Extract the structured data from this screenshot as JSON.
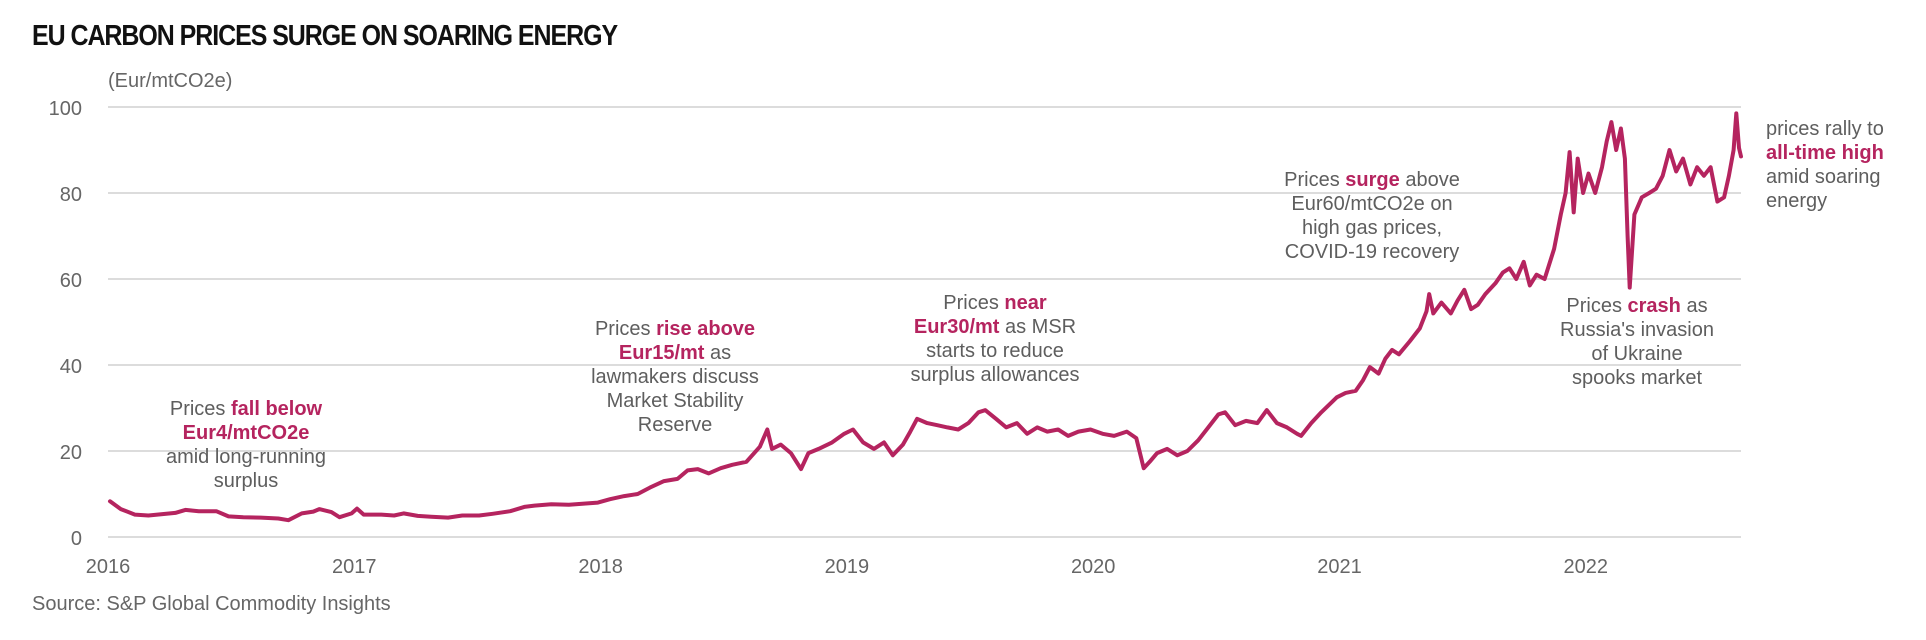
{
  "chart_data": {
    "type": "line",
    "title": "EU CARBON PRICES SURGE ON SOARING ENERGY",
    "ylabel": "(Eur/mtCO2e)",
    "xlabel": "",
    "source": "Source: S&P Global Commodity Insights",
    "ylim": [
      0,
      100
    ],
    "yticks": [
      "0",
      "20",
      "40",
      "60",
      "80",
      "100"
    ],
    "xticks": [
      "2016",
      "2017",
      "2018",
      "2019",
      "2020",
      "2021",
      "2022"
    ],
    "grid": true,
    "line_color": "#b5245f",
    "emphasis_color": "#b5245f",
    "series": [
      {
        "points": [
          [
            "2016-01-04",
            8.3
          ],
          [
            "2016-01-20",
            6.5
          ],
          [
            "2016-02-10",
            5.2
          ],
          [
            "2016-03-01",
            5.0
          ],
          [
            "2016-03-20",
            5.3
          ],
          [
            "2016-04-10",
            5.6
          ],
          [
            "2016-04-25",
            6.3
          ],
          [
            "2016-05-15",
            6.0
          ],
          [
            "2016-06-10",
            6.0
          ],
          [
            "2016-06-28",
            4.8
          ],
          [
            "2016-07-20",
            4.6
          ],
          [
            "2016-08-15",
            4.5
          ],
          [
            "2016-09-10",
            4.3
          ],
          [
            "2016-09-25",
            3.9
          ],
          [
            "2016-10-15",
            5.5
          ],
          [
            "2016-11-01",
            5.9
          ],
          [
            "2016-11-10",
            6.5
          ],
          [
            "2016-11-28",
            5.8
          ],
          [
            "2016-12-10",
            4.6
          ],
          [
            "2016-12-28",
            5.5
          ],
          [
            "2017-01-05",
            6.6
          ],
          [
            "2017-01-15",
            5.2
          ],
          [
            "2017-02-10",
            5.2
          ],
          [
            "2017-03-01",
            5.0
          ],
          [
            "2017-03-15",
            5.5
          ],
          [
            "2017-04-05",
            4.9
          ],
          [
            "2017-04-25",
            4.7
          ],
          [
            "2017-05-20",
            4.5
          ],
          [
            "2017-06-10",
            5.0
          ],
          [
            "2017-07-05",
            5.0
          ],
          [
            "2017-07-25",
            5.4
          ],
          [
            "2017-08-20",
            6.0
          ],
          [
            "2017-09-10",
            7.0
          ],
          [
            "2017-09-25",
            7.3
          ],
          [
            "2017-10-20",
            7.6
          ],
          [
            "2017-11-15",
            7.5
          ],
          [
            "2017-12-10",
            7.8
          ],
          [
            "2017-12-28",
            8.0
          ],
          [
            "2018-01-15",
            8.8
          ],
          [
            "2018-02-05",
            9.5
          ],
          [
            "2018-02-25",
            10.0
          ],
          [
            "2018-03-15",
            11.5
          ],
          [
            "2018-04-05",
            13.0
          ],
          [
            "2018-04-25",
            13.5
          ],
          [
            "2018-05-10",
            15.5
          ],
          [
            "2018-05-25",
            15.8
          ],
          [
            "2018-06-10",
            14.8
          ],
          [
            "2018-06-28",
            16.0
          ],
          [
            "2018-07-15",
            16.8
          ],
          [
            "2018-08-05",
            17.5
          ],
          [
            "2018-08-25",
            21.0
          ],
          [
            "2018-09-05",
            25.0
          ],
          [
            "2018-09-12",
            20.5
          ],
          [
            "2018-09-25",
            21.5
          ],
          [
            "2018-10-10",
            19.5
          ],
          [
            "2018-10-25",
            15.8
          ],
          [
            "2018-11-05",
            19.5
          ],
          [
            "2018-11-20",
            20.5
          ],
          [
            "2018-12-10",
            22.0
          ],
          [
            "2018-12-28",
            24.0
          ],
          [
            "2019-01-10",
            25.0
          ],
          [
            "2019-01-25",
            22.0
          ],
          [
            "2019-02-10",
            20.5
          ],
          [
            "2019-02-25",
            22.0
          ],
          [
            "2019-03-10",
            19.0
          ],
          [
            "2019-03-25",
            21.5
          ],
          [
            "2019-04-05",
            24.5
          ],
          [
            "2019-04-15",
            27.5
          ],
          [
            "2019-04-30",
            26.5
          ],
          [
            "2019-05-15",
            26.0
          ],
          [
            "2019-05-30",
            25.5
          ],
          [
            "2019-06-15",
            25.0
          ],
          [
            "2019-06-30",
            26.5
          ],
          [
            "2019-07-15",
            29.0
          ],
          [
            "2019-07-25",
            29.5
          ],
          [
            "2019-08-10",
            27.5
          ],
          [
            "2019-08-25",
            25.5
          ],
          [
            "2019-09-10",
            26.5
          ],
          [
            "2019-09-25",
            24.0
          ],
          [
            "2019-10-10",
            25.5
          ],
          [
            "2019-10-25",
            24.5
          ],
          [
            "2019-11-10",
            25.0
          ],
          [
            "2019-11-25",
            23.5
          ],
          [
            "2019-12-10",
            24.5
          ],
          [
            "2019-12-28",
            25.0
          ],
          [
            "2020-01-15",
            24.0
          ],
          [
            "2020-02-01",
            23.5
          ],
          [
            "2020-02-20",
            24.5
          ],
          [
            "2020-03-05",
            23.0
          ],
          [
            "2020-03-16",
            16.0
          ],
          [
            "2020-03-25",
            17.5
          ],
          [
            "2020-04-05",
            19.5
          ],
          [
            "2020-04-20",
            20.5
          ],
          [
            "2020-05-05",
            19.0
          ],
          [
            "2020-05-20",
            20.0
          ],
          [
            "2020-06-05",
            22.5
          ],
          [
            "2020-06-20",
            25.5
          ],
          [
            "2020-07-05",
            28.5
          ],
          [
            "2020-07-15",
            29.0
          ],
          [
            "2020-07-30",
            26.0
          ],
          [
            "2020-08-15",
            27.0
          ],
          [
            "2020-09-01",
            26.5
          ],
          [
            "2020-09-15",
            29.5
          ],
          [
            "2020-09-30",
            26.5
          ],
          [
            "2020-10-15",
            25.5
          ],
          [
            "2020-10-30",
            24.0
          ],
          [
            "2020-11-05",
            23.5
          ],
          [
            "2020-11-20",
            26.5
          ],
          [
            "2020-12-05",
            29.0
          ],
          [
            "2020-12-28",
            32.5
          ],
          [
            "2021-01-10",
            33.5
          ],
          [
            "2021-01-25",
            34.0
          ],
          [
            "2021-02-05",
            36.5
          ],
          [
            "2021-02-15",
            39.5
          ],
          [
            "2021-02-28",
            38.0
          ],
          [
            "2021-03-10",
            41.5
          ],
          [
            "2021-03-20",
            43.5
          ],
          [
            "2021-03-30",
            42.5
          ],
          [
            "2021-04-15",
            45.5
          ],
          [
            "2021-04-30",
            48.5
          ],
          [
            "2021-05-10",
            52.5
          ],
          [
            "2021-05-14",
            56.5
          ],
          [
            "2021-05-20",
            52.0
          ],
          [
            "2021-06-01",
            54.5
          ],
          [
            "2021-06-15",
            52.0
          ],
          [
            "2021-06-25",
            55.0
          ],
          [
            "2021-07-05",
            57.5
          ],
          [
            "2021-07-15",
            53.0
          ],
          [
            "2021-07-25",
            54.0
          ],
          [
            "2021-08-05",
            56.5
          ],
          [
            "2021-08-20",
            59.0
          ],
          [
            "2021-08-31",
            61.5
          ],
          [
            "2021-09-10",
            62.5
          ],
          [
            "2021-09-20",
            60.0
          ],
          [
            "2021-10-01",
            64.0
          ],
          [
            "2021-10-10",
            58.5
          ],
          [
            "2021-10-20",
            61.0
          ],
          [
            "2021-11-01",
            60.0
          ],
          [
            "2021-11-15",
            67.0
          ],
          [
            "2021-11-25",
            75.0
          ],
          [
            "2021-12-02",
            80.0
          ],
          [
            "2021-12-08",
            89.5
          ],
          [
            "2021-12-14",
            75.5
          ],
          [
            "2021-12-20",
            88.0
          ],
          [
            "2021-12-28",
            80.0
          ],
          [
            "2022-01-05",
            84.5
          ],
          [
            "2022-01-15",
            80.0
          ],
          [
            "2022-01-25",
            86.0
          ],
          [
            "2022-02-01",
            92.0
          ],
          [
            "2022-02-08",
            96.5
          ],
          [
            "2022-02-15",
            90.0
          ],
          [
            "2022-02-22",
            95.0
          ],
          [
            "2022-02-28",
            88.0
          ],
          [
            "2022-03-04",
            70.0
          ],
          [
            "2022-03-07",
            58.0
          ],
          [
            "2022-03-14",
            75.0
          ],
          [
            "2022-03-25",
            79.0
          ],
          [
            "2022-04-05",
            80.0
          ],
          [
            "2022-04-15",
            81.0
          ],
          [
            "2022-04-25",
            84.0
          ],
          [
            "2022-05-05",
            90.0
          ],
          [
            "2022-05-15",
            85.0
          ],
          [
            "2022-05-25",
            88.0
          ],
          [
            "2022-06-05",
            82.0
          ],
          [
            "2022-06-15",
            86.0
          ],
          [
            "2022-06-25",
            84.0
          ],
          [
            "2022-07-05",
            86.0
          ],
          [
            "2022-07-15",
            78.0
          ],
          [
            "2022-07-25",
            79.0
          ],
          [
            "2022-08-01",
            84.0
          ],
          [
            "2022-08-08",
            90.0
          ],
          [
            "2022-08-12",
            98.5
          ],
          [
            "2022-08-16",
            90.5
          ],
          [
            "2022-08-19",
            88.5
          ]
        ]
      }
    ],
    "annotations": [
      {
        "lines": [
          [
            {
              "text": "Prices ",
              "emph": false
            },
            {
              "text": "fall below",
              "emph": true
            }
          ],
          [
            {
              "text": "Eur4/mtCO2e",
              "emph": true
            }
          ],
          [
            {
              "text": "amid long-running",
              "emph": false
            }
          ],
          [
            {
              "text": "surplus",
              "emph": false
            }
          ]
        ]
      },
      {
        "lines": [
          [
            {
              "text": "Prices ",
              "emph": false
            },
            {
              "text": "rise above",
              "emph": true
            }
          ],
          [
            {
              "text": "Eur15/mt",
              "emph": true
            },
            {
              "text": " as",
              "emph": false
            }
          ],
          [
            {
              "text": "lawmakers discuss",
              "emph": false
            }
          ],
          [
            {
              "text": "Market Stability",
              "emph": false
            }
          ],
          [
            {
              "text": "Reserve",
              "emph": false
            }
          ]
        ]
      },
      {
        "lines": [
          [
            {
              "text": "Prices ",
              "emph": false
            },
            {
              "text": "near",
              "emph": true
            }
          ],
          [
            {
              "text": "Eur30/mt",
              "emph": true
            },
            {
              "text": " as MSR",
              "emph": false
            }
          ],
          [
            {
              "text": "starts to reduce",
              "emph": false
            }
          ],
          [
            {
              "text": "surplus allowances",
              "emph": false
            }
          ]
        ]
      },
      {
        "lines": [
          [
            {
              "text": "Prices ",
              "emph": false
            },
            {
              "text": "surge",
              "emph": true
            },
            {
              "text": " above",
              "emph": false
            }
          ],
          [
            {
              "text": "Eur60/mtCO2e on",
              "emph": false
            }
          ],
          [
            {
              "text": "high gas prices,",
              "emph": false
            }
          ],
          [
            {
              "text": "COVID-19 recovery",
              "emph": false
            }
          ]
        ]
      },
      {
        "lines": [
          [
            {
              "text": "Prices ",
              "emph": false
            },
            {
              "text": "crash",
              "emph": true
            },
            {
              "text": " as",
              "emph": false
            }
          ],
          [
            {
              "text": "Russia's invasion",
              "emph": false
            }
          ],
          [
            {
              "text": "of Ukraine",
              "emph": false
            }
          ],
          [
            {
              "text": "spooks market",
              "emph": false
            }
          ]
        ]
      },
      {
        "lines": [
          [
            {
              "text": "prices rally to",
              "emph": false
            }
          ],
          [
            {
              "text": "all-time high",
              "emph": true
            }
          ],
          [
            {
              "text": "amid soaring",
              "emph": false
            }
          ],
          [
            {
              "text": "energy",
              "emph": false
            }
          ]
        ]
      }
    ]
  }
}
